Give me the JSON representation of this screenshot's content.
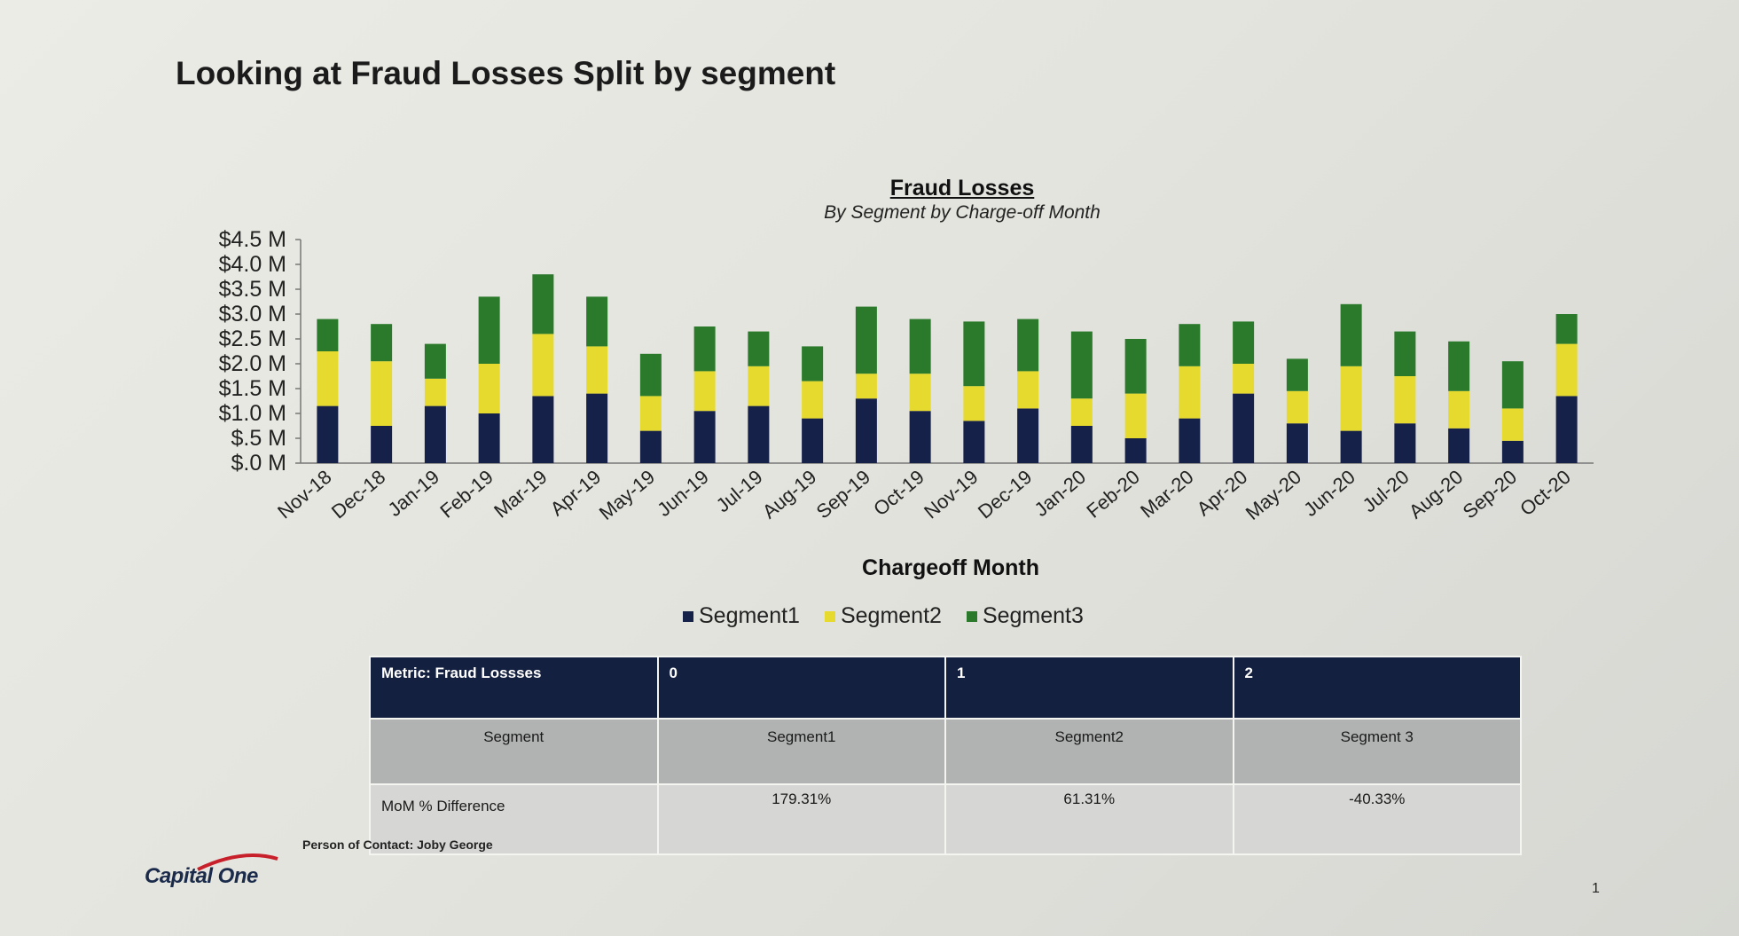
{
  "slide": {
    "title": "Looking at Fraud Losses Split by segment",
    "contact": "Person of Contact: Joby George",
    "page_number": "1",
    "logo_text": "Capital One"
  },
  "chart_data": {
    "type": "bar",
    "stacked": true,
    "title": "Fraud Losses",
    "subtitle": "By Segment by Charge-off Month",
    "xlabel": "Chargeoff Month",
    "ylabel": "",
    "ylim": [
      0,
      4.5
    ],
    "yticks": [
      "$.0 M",
      "$.5 M",
      "$1.0 M",
      "$1.5 M",
      "$2.0 M",
      "$2.5 M",
      "$3.0 M",
      "$3.5 M",
      "$4.0 M",
      "$4.5 M"
    ],
    "grid": false,
    "legend_position": "bottom",
    "categories": [
      "Nov-18",
      "Dec-18",
      "Jan-19",
      "Feb-19",
      "Mar-19",
      "Apr-19",
      "May-19",
      "Jun-19",
      "Jul-19",
      "Aug-19",
      "Sep-19",
      "Oct-19",
      "Nov-19",
      "Dec-19",
      "Jan-20",
      "Feb-20",
      "Mar-20",
      "Apr-20",
      "May-20",
      "Jun-20",
      "Jul-20",
      "Aug-20",
      "Sep-20",
      "Oct-20"
    ],
    "series": [
      {
        "name": "Segment1",
        "color": "#16214a",
        "values": [
          1.15,
          0.75,
          1.15,
          1.0,
          1.35,
          1.4,
          0.65,
          1.05,
          1.15,
          0.9,
          1.3,
          1.05,
          0.85,
          1.1,
          0.75,
          0.5,
          0.9,
          1.4,
          0.8,
          0.65,
          0.8,
          0.7,
          0.45,
          1.35
        ]
      },
      {
        "name": "Segment2",
        "color": "#e6da2e",
        "values": [
          1.1,
          1.3,
          0.55,
          1.0,
          1.25,
          0.95,
          0.7,
          0.8,
          0.8,
          0.75,
          0.5,
          0.75,
          0.7,
          0.75,
          0.55,
          0.9,
          1.05,
          0.6,
          0.65,
          1.3,
          0.95,
          0.75,
          0.65,
          1.05
        ]
      },
      {
        "name": "Segment3",
        "color": "#2b7a2b",
        "values": [
          0.65,
          0.75,
          0.7,
          1.35,
          1.2,
          1.0,
          0.85,
          0.9,
          0.7,
          0.7,
          1.35,
          1.1,
          1.3,
          1.05,
          1.35,
          1.1,
          0.85,
          0.85,
          0.65,
          1.25,
          0.9,
          1.0,
          0.95,
          0.6
        ]
      }
    ]
  },
  "table": {
    "header": [
      "Metric: Fraud Lossses",
      "0",
      "1",
      "2"
    ],
    "segment_row": [
      "Segment",
      "Segment1",
      "Segment2",
      "Segment 3"
    ],
    "value_row": [
      "MoM % Difference",
      "179.31%",
      "61.31%",
      "-40.33%"
    ]
  }
}
